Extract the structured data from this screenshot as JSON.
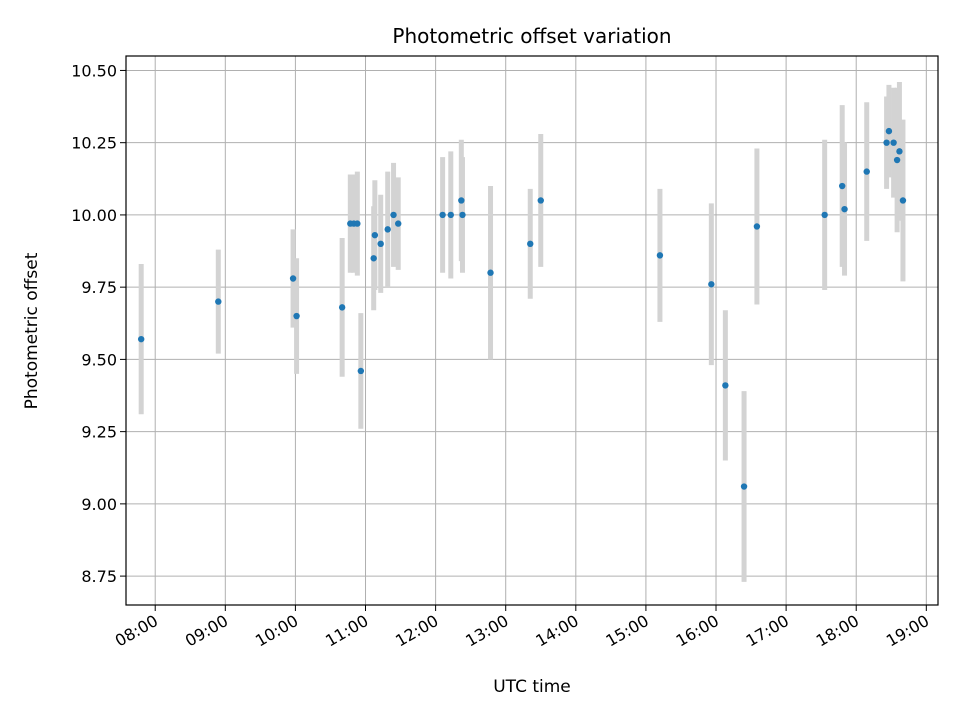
{
  "chart_data": {
    "type": "scatter",
    "title": "Photometric offset variation",
    "xlabel": "UTC time",
    "ylabel": "Photometric offset",
    "xlim": [
      "07:35",
      "19:10"
    ],
    "ylim": [
      8.65,
      10.55
    ],
    "x_ticks": [
      "08:00",
      "09:00",
      "10:00",
      "11:00",
      "12:00",
      "13:00",
      "14:00",
      "15:00",
      "16:00",
      "17:00",
      "18:00",
      "19:00"
    ],
    "y_ticks": [
      "8.75",
      "9.00",
      "9.25",
      "9.50",
      "9.75",
      "10.00",
      "10.25",
      "10.50"
    ],
    "grid": true,
    "colors": {
      "points": "#1f77b4",
      "error_bars": "#d3d3d3",
      "grid": "#b0b0b0"
    },
    "points": [
      {
        "x": "07:48",
        "y": 9.57,
        "err": 0.26
      },
      {
        "x": "08:54",
        "y": 9.7,
        "err": 0.18
      },
      {
        "x": "09:58",
        "y": 9.78,
        "err": 0.17
      },
      {
        "x": "10:01",
        "y": 9.65,
        "err": 0.2
      },
      {
        "x": "10:40",
        "y": 9.68,
        "err": 0.24
      },
      {
        "x": "10:47",
        "y": 9.97,
        "err": 0.17
      },
      {
        "x": "10:50",
        "y": 9.97,
        "err": 0.17
      },
      {
        "x": "10:53",
        "y": 9.97,
        "err": 0.18
      },
      {
        "x": "10:56",
        "y": 9.46,
        "err": 0.2
      },
      {
        "x": "11:07",
        "y": 9.85,
        "err": 0.18
      },
      {
        "x": "11:08",
        "y": 9.93,
        "err": 0.19
      },
      {
        "x": "11:13",
        "y": 9.9,
        "err": 0.17
      },
      {
        "x": "11:19",
        "y": 9.95,
        "err": 0.2
      },
      {
        "x": "11:24",
        "y": 10.0,
        "err": 0.18
      },
      {
        "x": "11:28",
        "y": 9.97,
        "err": 0.16
      },
      {
        "x": "12:06",
        "y": 10.0,
        "err": 0.2
      },
      {
        "x": "12:13",
        "y": 10.0,
        "err": 0.22
      },
      {
        "x": "12:22",
        "y": 10.05,
        "err": 0.21
      },
      {
        "x": "12:23",
        "y": 10.0,
        "err": 0.2
      },
      {
        "x": "12:47",
        "y": 9.8,
        "err": 0.3
      },
      {
        "x": "13:21",
        "y": 9.9,
        "err": 0.19
      },
      {
        "x": "13:30",
        "y": 10.05,
        "err": 0.23
      },
      {
        "x": "15:12",
        "y": 9.86,
        "err": 0.23
      },
      {
        "x": "15:56",
        "y": 9.76,
        "err": 0.28
      },
      {
        "x": "16:08",
        "y": 9.41,
        "err": 0.26
      },
      {
        "x": "16:24",
        "y": 9.06,
        "err": 0.33
      },
      {
        "x": "16:35",
        "y": 9.96,
        "err": 0.27
      },
      {
        "x": "17:33",
        "y": 10.0,
        "err": 0.26
      },
      {
        "x": "17:48",
        "y": 10.1,
        "err": 0.28
      },
      {
        "x": "17:50",
        "y": 10.02,
        "err": 0.23
      },
      {
        "x": "18:09",
        "y": 10.15,
        "err": 0.24
      },
      {
        "x": "18:26",
        "y": 10.25,
        "err": 0.16
      },
      {
        "x": "18:28",
        "y": 10.29,
        "err": 0.16
      },
      {
        "x": "18:32",
        "y": 10.25,
        "err": 0.19
      },
      {
        "x": "18:35",
        "y": 10.19,
        "err": 0.25
      },
      {
        "x": "18:37",
        "y": 10.22,
        "err": 0.24
      },
      {
        "x": "18:40",
        "y": 10.05,
        "err": 0.28
      }
    ]
  }
}
